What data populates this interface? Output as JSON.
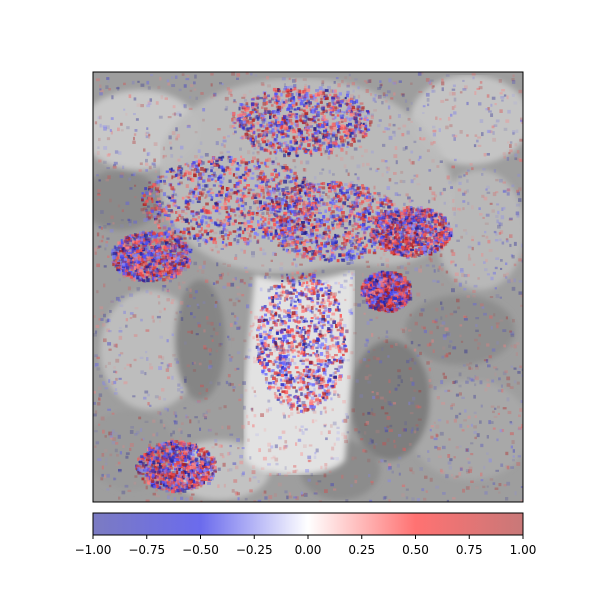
{
  "chart_data": {
    "type": "heatmap",
    "title": "",
    "xlabel": "",
    "ylabel": "",
    "axes_ticks_visible": false,
    "grid": false,
    "background_image": "grayscale photograph of a mushroom among leaves",
    "overlay": "red/blue attribution noise, concentrated on the mushroom cap and stem",
    "colorbar": {
      "orientation": "horizontal",
      "placement": "bottom",
      "colormap": "seismic",
      "colors": [
        "#7a7ac2",
        "#6a6ae8",
        "#ffffff",
        "#ff7070",
        "#c87878"
      ],
      "vmin": -1.0,
      "vmax": 1.0,
      "ticks": [
        -1.0,
        -0.75,
        -0.5,
        -0.25,
        0.0,
        0.25,
        0.5,
        0.75,
        1.0
      ],
      "tick_labels": [
        "−1.00",
        "−0.75",
        "−0.50",
        "−0.25",
        "0.00",
        "0.25",
        "0.50",
        "0.75",
        "1.00"
      ]
    }
  }
}
